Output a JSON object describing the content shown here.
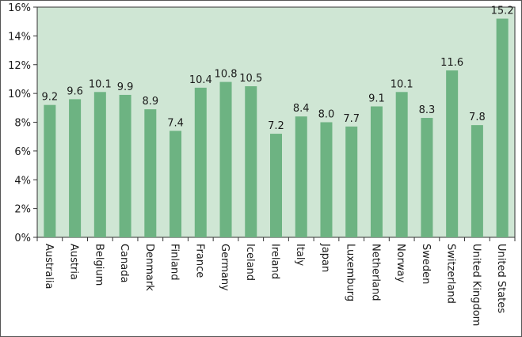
{
  "chart_data": {
    "type": "bar",
    "title": "",
    "xlabel": "",
    "ylabel": "",
    "ylim": [
      0,
      16
    ],
    "yticks": [
      "0%",
      "2%",
      "4%",
      "6%",
      "8%",
      "10%",
      "12%",
      "14%",
      "16%"
    ],
    "ytick_values": [
      0,
      2,
      4,
      6,
      8,
      10,
      12,
      14,
      16
    ],
    "grid": false,
    "categories": [
      "Australia",
      "Austria",
      "Belgium",
      "Canada",
      "Denmark",
      "Finland",
      "France",
      "Germany",
      "Iceland",
      "Ireland",
      "Italy",
      "Japan",
      "Luxemburg",
      "Netherland",
      "Norway",
      "Sweden",
      "Switzerland",
      "United Kingdom",
      "United States"
    ],
    "values": [
      9.2,
      9.6,
      10.1,
      9.9,
      8.9,
      7.4,
      10.4,
      10.8,
      10.5,
      7.2,
      8.4,
      8.0,
      7.7,
      9.1,
      10.1,
      8.3,
      11.6,
      7.8,
      15.2
    ],
    "labels": [
      "9.2",
      "9.6",
      "10.1",
      "9.9",
      "8.9",
      "7.4",
      "10.4",
      "10.8",
      "10.5",
      "7.2",
      "8.4",
      "8.0",
      "7.7",
      "9.1",
      "10.1",
      "8.3",
      "11.6",
      "7.8",
      "15.2"
    ],
    "colors": {
      "bar": "#6db382",
      "plot_background": "#cfe6d4",
      "axis": "#333333"
    }
  }
}
